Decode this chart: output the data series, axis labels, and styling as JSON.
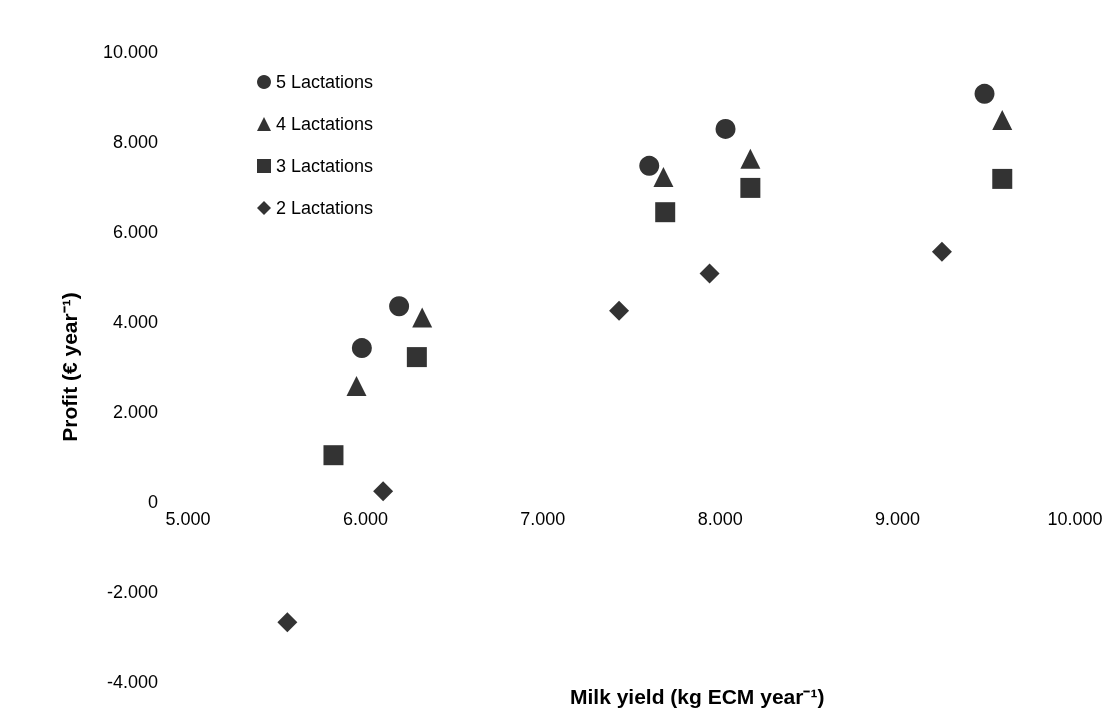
{
  "chart_data": {
    "type": "scatter",
    "xlabel": "Milk yield (kg ECM year⁻¹)",
    "ylabel": "Profit (€ year⁻¹)",
    "xlim": [
      5000,
      10000
    ],
    "ylim": [
      -4000,
      10000
    ],
    "xticks": [
      {
        "value": 5000,
        "label": "5.000"
      },
      {
        "value": 6000,
        "label": "6.000"
      },
      {
        "value": 7000,
        "label": "7.000"
      },
      {
        "value": 8000,
        "label": "8.000"
      },
      {
        "value": 9000,
        "label": "9.000"
      },
      {
        "value": 10000,
        "label": "10.000"
      }
    ],
    "yticks": [
      {
        "value": -4000,
        "label": "-4.000"
      },
      {
        "value": -2000,
        "label": "-2.000"
      },
      0,
      {
        "value": 2000,
        "label": "2.000"
      },
      {
        "value": 4000,
        "label": "4.000"
      },
      {
        "value": 6000,
        "label": "6.000"
      },
      {
        "value": 8000,
        "label": "8.000"
      },
      {
        "value": 10000,
        "label": "10.000"
      }
    ],
    "grid": false,
    "legend": "top left",
    "series": [
      {
        "name": "5 Lactations",
        "color": "#000000",
        "marker": "circle",
        "x": [
          5980,
          6190,
          7600,
          8030,
          9490
        ],
        "values": [
          3420,
          4350,
          7470,
          8290,
          9070
        ]
      },
      {
        "name": "4 Lactations",
        "color": "#000000",
        "marker": "triangle",
        "x": [
          5950,
          6320,
          7680,
          8170,
          9590
        ],
        "values": [
          2580,
          4100,
          7220,
          7630,
          8490
        ]
      },
      {
        "name": "3 Lactations",
        "color": "#000000",
        "marker": "square",
        "x": [
          5820,
          6290,
          7690,
          8170,
          9590
        ],
        "values": [
          1040,
          3220,
          6440,
          6980,
          7180
        ]
      },
      {
        "name": "2 Lactations",
        "color": "#000000",
        "marker": "diamond",
        "x": [
          5560,
          6100,
          7430,
          7940,
          9250
        ],
        "values": [
          -2670,
          240,
          4250,
          5080,
          5560
        ]
      }
    ]
  }
}
